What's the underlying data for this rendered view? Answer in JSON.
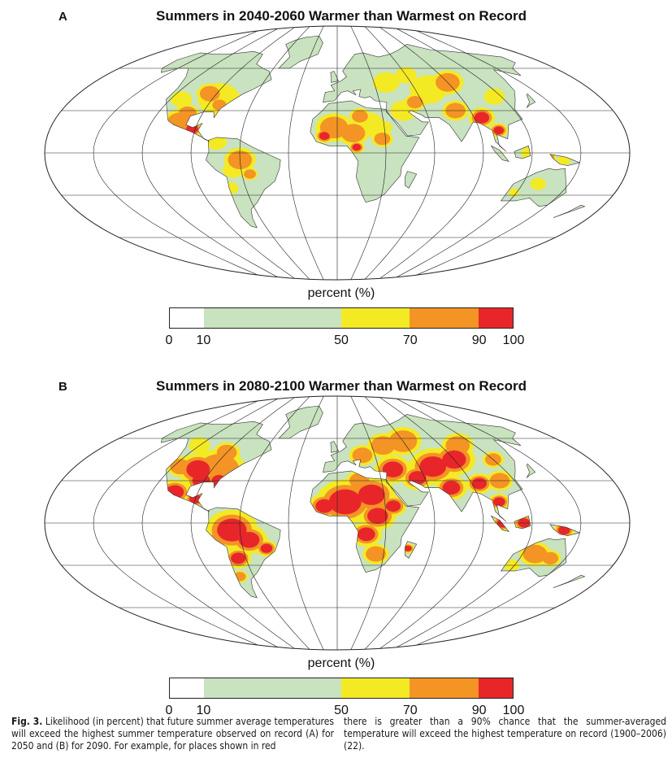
{
  "panels": [
    {
      "letter": "A",
      "title": "Summers in 2040-2060 Warmer than Warmest on Record"
    },
    {
      "letter": "B",
      "title": "Summers in 2080-2100 Warmer than Warmest on Record"
    }
  ],
  "legend": {
    "title": "percent (%)",
    "ticks": [
      "0",
      "10",
      "50",
      "70",
      "90",
      "100"
    ],
    "tick_values": [
      0,
      10,
      50,
      70,
      90,
      100
    ],
    "bins": [
      {
        "from": 0,
        "to": 10,
        "color": "#ffffff"
      },
      {
        "from": 10,
        "to": 50,
        "color": "#c9e2bf"
      },
      {
        "from": 50,
        "to": 70,
        "color": "#f4ea24"
      },
      {
        "from": 70,
        "to": 90,
        "color": "#f39425"
      },
      {
        "from": 90,
        "to": 100,
        "color": "#e8262a"
      }
    ]
  },
  "caption": {
    "label": "Fig. 3.",
    "col1": "Likelihood (in percent) that future summer average temperatures will exceed the highest summer temperature observed on record (A) for 2050 and (B) for 2090. For example, for places shown in red",
    "col2": "there is greater than a 90% chance that the summer-averaged temperature will exceed the highest temperature on record (1900–2006) (22)."
  }
}
